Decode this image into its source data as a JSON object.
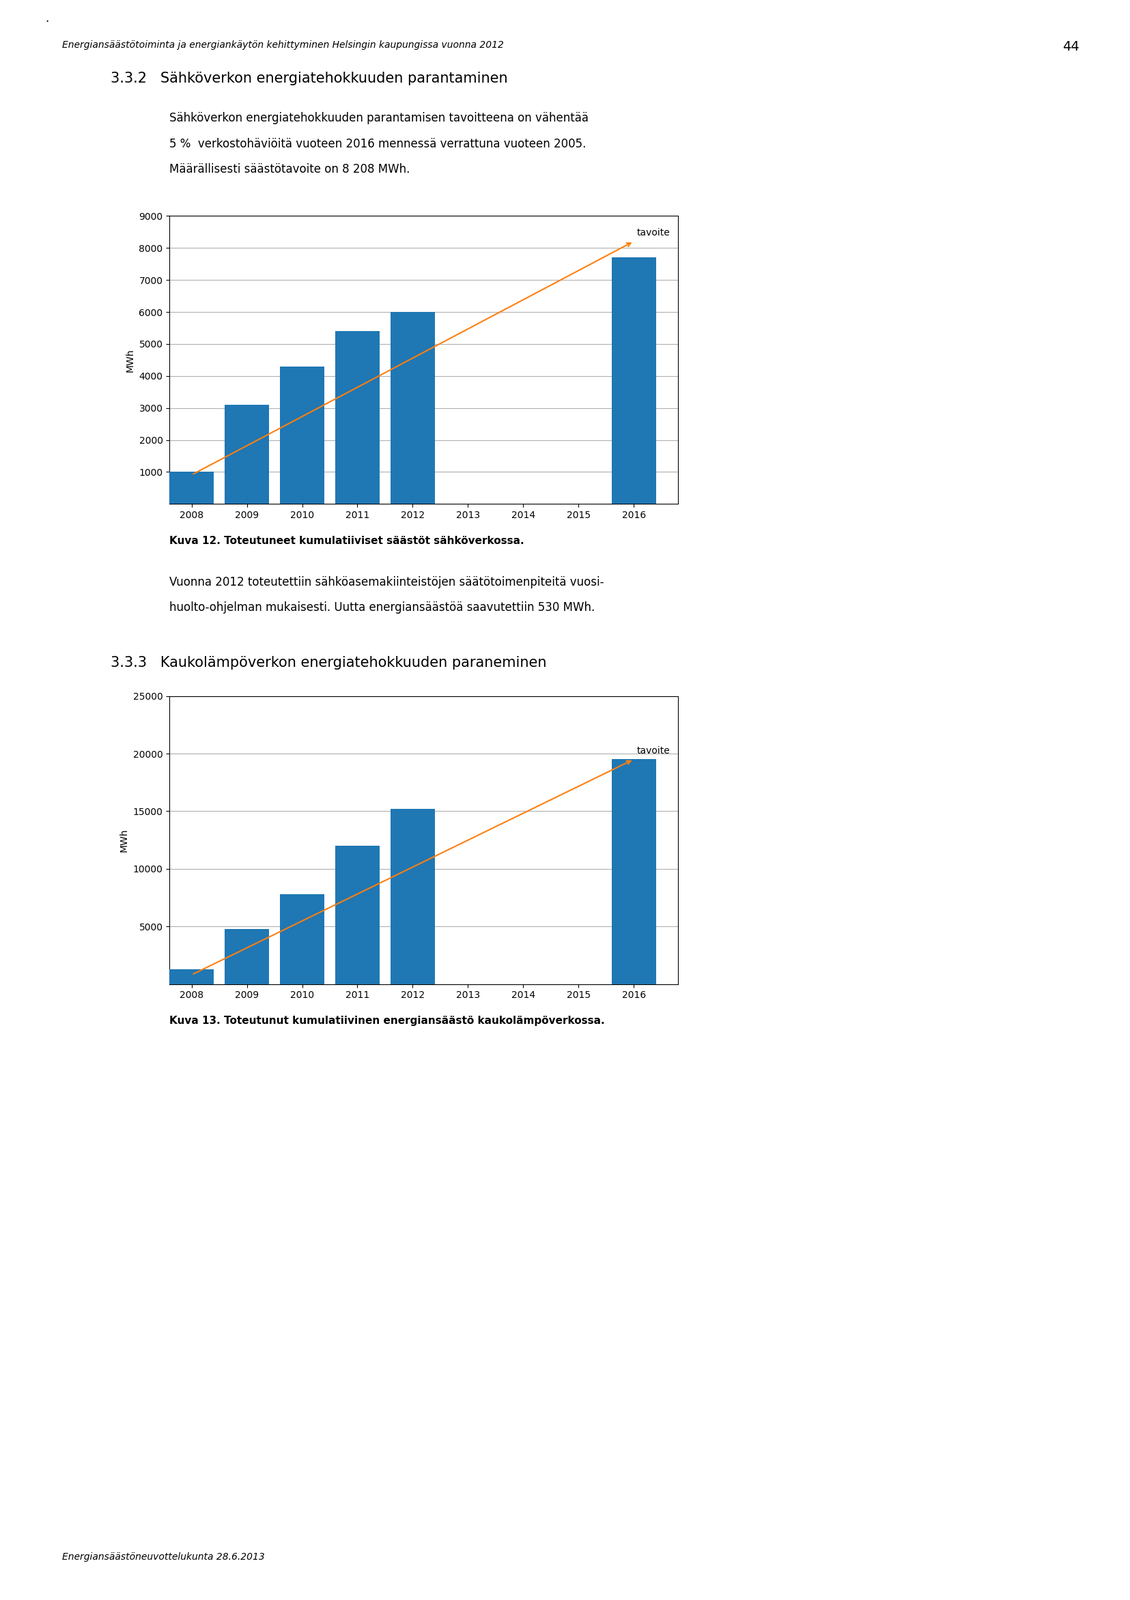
{
  "page": {
    "dot": "·",
    "header": "Energiansäästötoiminta ja energiankäytön kehittyminen Helsingin kaupungissa vuonna 2012",
    "page_number": "44",
    "footer": "Energiansäästöneuvottelukunta 28.6.2013"
  },
  "chart_data": [
    {
      "type": "bar",
      "section_title": "3.3.2   Sähköverkon energiatehokkuuden parantaminen",
      "text_before": [
        "Sähköverkon energiatehokkuuden parantamisen tavoitteena on vähentää",
        "5 %  verkostohäviöitä vuoteen 2016 mennessä verrattuna vuoteen 2005.",
        "Määrällisesti säästötavoite on 8 208 MWh."
      ],
      "y_label": "MWh",
      "x": [
        2008,
        2009,
        2010,
        2011,
        2012,
        2013,
        2014,
        2015,
        2016
      ],
      "values": [
        1000,
        3100,
        4300,
        5400,
        6000,
        null,
        null,
        null,
        7700
      ],
      "xlim": [
        2007.6,
        2016.8
      ],
      "xticks": [
        2008,
        2009,
        2010,
        2011,
        2012,
        2013,
        2014,
        2015,
        2016
      ],
      "ylim": [
        0,
        9000
      ],
      "yticks": [
        1000,
        2000,
        3000,
        4000,
        5000,
        6000,
        7000,
        8000,
        9000
      ],
      "grid": true,
      "annotations": [
        {
          "text": "tavoite",
          "x": [
            2008,
            2016
          ],
          "y": [
            910,
            8208
          ]
        }
      ],
      "caption": "Kuva 12. Toteutuneet kumulatiiviset säästöt sähköverkossa.",
      "text_after": [
        "Vuonna 2012 toteutettiin sähköasemakiinteistöjen säätötoimenpiteitä vuosi-",
        "huolto-ohjelman mukaisesti. Uutta energiansäästöä saavutettiin 530 MWh."
      ]
    },
    {
      "type": "bar",
      "section_title": "3.3.3   Kaukolämpöverkon energiatehokkuuden paraneminen",
      "text_before": [],
      "y_label": "MWh",
      "x": [
        2008,
        2009,
        2010,
        2011,
        2012,
        2013,
        2014,
        2015,
        2016
      ],
      "values": [
        1300,
        4800,
        7800,
        12000,
        15200,
        null,
        null,
        null,
        19500
      ],
      "xlim": [
        2007.6,
        2016.8
      ],
      "xticks": [
        2008,
        2009,
        2010,
        2011,
        2012,
        2013,
        2014,
        2015,
        2016
      ],
      "ylim": [
        0,
        25000
      ],
      "yticks": [
        5000,
        10000,
        15000,
        20000,
        25000
      ],
      "grid": true,
      "annotations": [
        {
          "text": "tavoite",
          "x": [
            2008,
            2016
          ],
          "y": [
            800,
            19500
          ]
        }
      ],
      "caption": "Kuva 13. Toteutunut kumulatiivinen energiansäästö kaukolämpöverkossa.",
      "text_after": []
    }
  ]
}
